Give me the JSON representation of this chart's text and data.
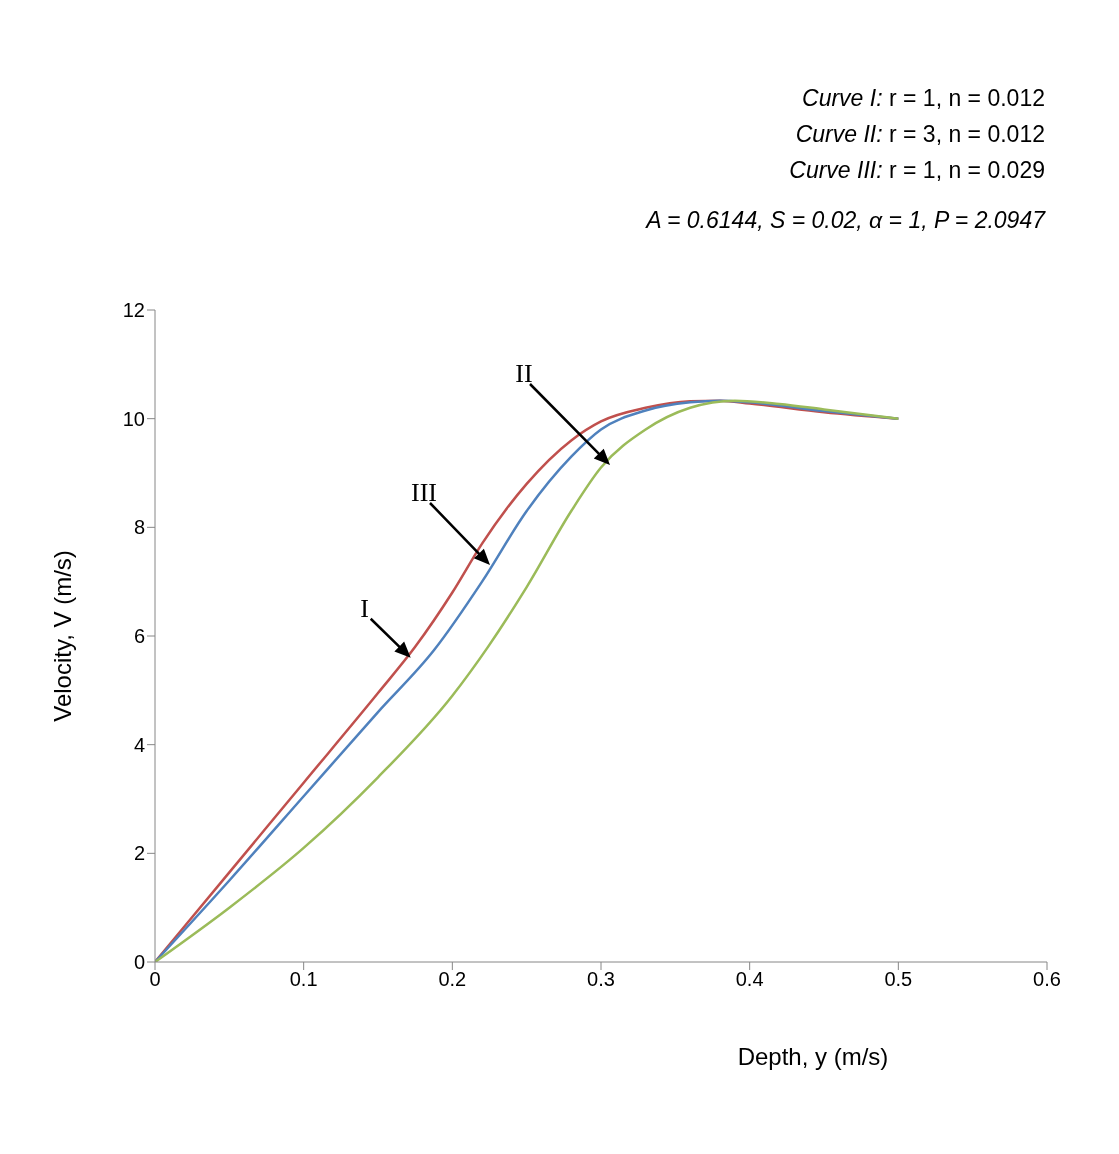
{
  "chart_data": {
    "type": "line",
    "xlabel": "Depth, y (m/s)",
    "ylabel": "Velocity, V (m/s)",
    "series": [
      {
        "color": "#c0504d",
        "x": [
          0,
          0.05,
          0.1,
          0.15,
          0.175,
          0.2,
          0.22,
          0.25,
          0.28,
          0.3,
          0.33,
          0.36,
          0.38,
          0.4,
          0.45,
          0.5
        ],
        "values": [
          0,
          1.65,
          3.3,
          4.95,
          5.8,
          6.8,
          7.7,
          8.8,
          9.6,
          9.95,
          10.2,
          10.32,
          10.33,
          10.28,
          10.12,
          10.0
        ]
      },
      {
        "color": "#4f81bd",
        "x": [
          0,
          0.05,
          0.1,
          0.15,
          0.188,
          0.22,
          0.25,
          0.28,
          0.3,
          0.33,
          0.36,
          0.38,
          0.4,
          0.45,
          0.5
        ],
        "values": [
          0,
          1.5,
          3.05,
          4.6,
          5.75,
          7.0,
          8.3,
          9.3,
          9.8,
          10.15,
          10.3,
          10.33,
          10.3,
          10.14,
          10.0
        ]
      },
      {
        "color": "#9bbb59",
        "x": [
          0,
          0.05,
          0.1,
          0.15,
          0.2,
          0.224,
          0.25,
          0.28,
          0.3,
          0.33,
          0.36,
          0.39,
          0.42,
          0.45,
          0.5
        ],
        "values": [
          0,
          1.0,
          2.1,
          3.4,
          4.9,
          5.8,
          6.9,
          8.3,
          9.1,
          9.8,
          10.2,
          10.33,
          10.27,
          10.17,
          10.0
        ]
      }
    ],
    "xlim": [
      0,
      0.6
    ],
    "xticks": [
      0,
      0.1,
      0.2,
      0.3,
      0.4,
      0.5,
      0.6
    ],
    "ylim": [
      0,
      12
    ],
    "yticks": [
      0,
      2,
      4,
      6,
      8,
      10,
      12
    ],
    "grid": false,
    "legend": false,
    "marker": "none",
    "line_style": "solid",
    "annotations": [
      "Curve I: r = 1, n = 0.012",
      "Curve II: r = 3, n = 0.012",
      "Curve III: r = 1, n = 0.029",
      "A = 0.6144, S = 0.02, α = 1, P = 2.0947",
      {
        "text": "I",
        "x": 0.172,
        "y": 5.6
      },
      "III",
      "II"
    ]
  }
}
